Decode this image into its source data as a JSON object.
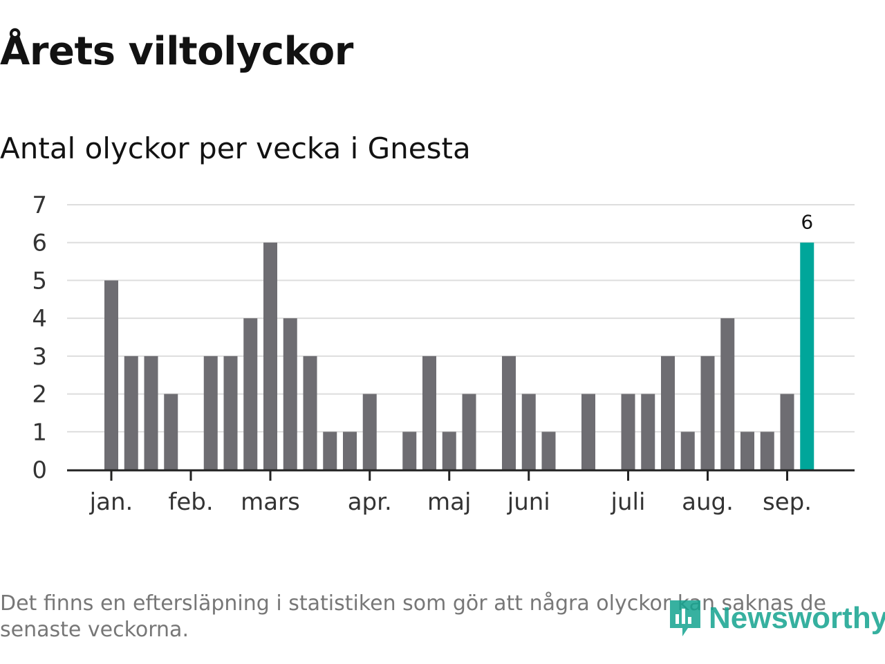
{
  "title": "Årets viltolyckor",
  "subtitle": "Antal olyckor per vecka i Gnesta",
  "footnote": "Det finns en eftersläpning i statistiken som gör att några olyckor kan saknas de senaste veckorna.",
  "logo_text": "Newsworthy",
  "colors": {
    "bar": "#6e6d72",
    "highlight": "#00a69a",
    "grid": "#dddddd",
    "axis": "#222222",
    "logo": "#14a38f"
  },
  "chart_data": {
    "type": "bar",
    "title": "Årets viltolyckor",
    "subtitle": "Antal olyckor per vecka i Gnesta",
    "xlabel": "",
    "ylabel": "",
    "ylim": [
      0,
      7
    ],
    "yticks": [
      0,
      1,
      2,
      3,
      4,
      5,
      6,
      7
    ],
    "grid": true,
    "month_labels": [
      {
        "label": "jan.",
        "week": 1
      },
      {
        "label": "feb.",
        "week": 5
      },
      {
        "label": "mars",
        "week": 9
      },
      {
        "label": "apr.",
        "week": 14
      },
      {
        "label": "maj",
        "week": 18
      },
      {
        "label": "juni",
        "week": 22
      },
      {
        "label": "juli",
        "week": 27
      },
      {
        "label": "aug.",
        "week": 31
      },
      {
        "label": "sep.",
        "week": 35
      }
    ],
    "weeks": [
      1,
      2,
      3,
      4,
      5,
      6,
      7,
      8,
      9,
      10,
      11,
      12,
      13,
      14,
      15,
      16,
      17,
      18,
      19,
      20,
      21,
      22,
      23,
      24,
      25,
      26,
      27,
      28,
      29,
      30,
      31,
      32,
      33,
      34,
      35,
      36
    ],
    "values": [
      5,
      3,
      3,
      2,
      0,
      3,
      3,
      4,
      6,
      4,
      3,
      1,
      1,
      2,
      0,
      1,
      3,
      1,
      2,
      0,
      3,
      2,
      1,
      0,
      2,
      0,
      2,
      2,
      3,
      1,
      3,
      4,
      1,
      1,
      2,
      6
    ],
    "highlight_index": 35,
    "highlight_label": "6"
  }
}
